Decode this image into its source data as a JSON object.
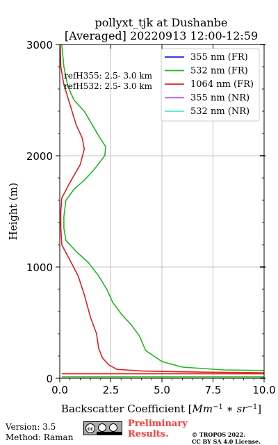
{
  "chart_data": {
    "type": "line",
    "title": "pollyxt_tjk at Dushanbe",
    "subtitle": "[Averaged] 20220913 12:00-12:59",
    "xlabel": "Backscatter Coefficient [Mm⁻¹ * sr⁻¹]",
    "ylabel": "Height (m)",
    "xlim": [
      0,
      10
    ],
    "ylim": [
      0,
      3000
    ],
    "xticks": [
      "0.0",
      "2.5",
      "5.0",
      "7.5",
      "10.0"
    ],
    "yticks": [
      "0",
      "1000",
      "2000",
      "3000"
    ],
    "grid": true,
    "legend_position": "top-right",
    "annotations": [
      "refH355:  2.5- 3.0 km",
      "refH532:  2.5- 3.0 km"
    ],
    "series": [
      {
        "name": "355 nm (FR)",
        "color": "#1f1fe0",
        "points": []
      },
      {
        "name": "532 nm (FR)",
        "color": "#1fb81f",
        "points": [
          [
            10.0,
            70
          ],
          [
            8.0,
            75
          ],
          [
            6.0,
            100
          ],
          [
            5.0,
            150
          ],
          [
            4.2,
            250
          ],
          [
            3.9,
            380
          ],
          [
            3.5,
            480
          ],
          [
            3.0,
            580
          ],
          [
            2.6,
            680
          ],
          [
            2.3,
            800
          ],
          [
            1.9,
            920
          ],
          [
            1.4,
            1040
          ],
          [
            0.8,
            1140
          ],
          [
            0.3,
            1240
          ],
          [
            0.2,
            1350
          ],
          [
            0.2,
            1450
          ],
          [
            0.3,
            1600
          ],
          [
            0.7,
            1700
          ],
          [
            1.2,
            1780
          ],
          [
            1.7,
            1880
          ],
          [
            2.2,
            2000
          ],
          [
            2.25,
            2080
          ],
          [
            1.9,
            2180
          ],
          [
            1.2,
            2400
          ],
          [
            0.7,
            2500
          ],
          [
            0.4,
            2620
          ],
          [
            0.2,
            2800
          ],
          [
            0.1,
            3000
          ]
        ]
      },
      {
        "name": "1064 nm (FR)",
        "color": "#e01f1f",
        "points": [
          [
            10.0,
            50
          ],
          [
            7.0,
            55
          ],
          [
            4.0,
            65
          ],
          [
            2.8,
            80
          ],
          [
            2.4,
            120
          ],
          [
            2.1,
            180
          ],
          [
            1.9,
            270
          ],
          [
            1.8,
            400
          ],
          [
            1.5,
            550
          ],
          [
            1.2,
            750
          ],
          [
            0.9,
            920
          ],
          [
            0.5,
            1060
          ],
          [
            0.1,
            1200
          ],
          [
            0.05,
            1350
          ],
          [
            0.05,
            1500
          ],
          [
            0.1,
            1620
          ],
          [
            0.5,
            1760
          ],
          [
            1.0,
            1920
          ],
          [
            1.2,
            2060
          ],
          [
            1.1,
            2160
          ],
          [
            0.8,
            2280
          ],
          [
            0.5,
            2460
          ],
          [
            0.2,
            2640
          ],
          [
            0.05,
            2800
          ],
          [
            0.02,
            3000
          ]
        ]
      },
      {
        "name": "355 nm (NR)",
        "color": "#b05fe0",
        "points": []
      },
      {
        "name": "532 nm (NR)",
        "color": "#4fe8c8",
        "points": []
      }
    ]
  },
  "footer": {
    "version": "Version: 3.5",
    "method": "Method: Raman",
    "preliminary_line1": "Preliminary",
    "preliminary_line2": "Results.",
    "copyright_line1": "© TROPOS 2022.",
    "copyright_line2": "CC BY SA 4.0 License."
  }
}
